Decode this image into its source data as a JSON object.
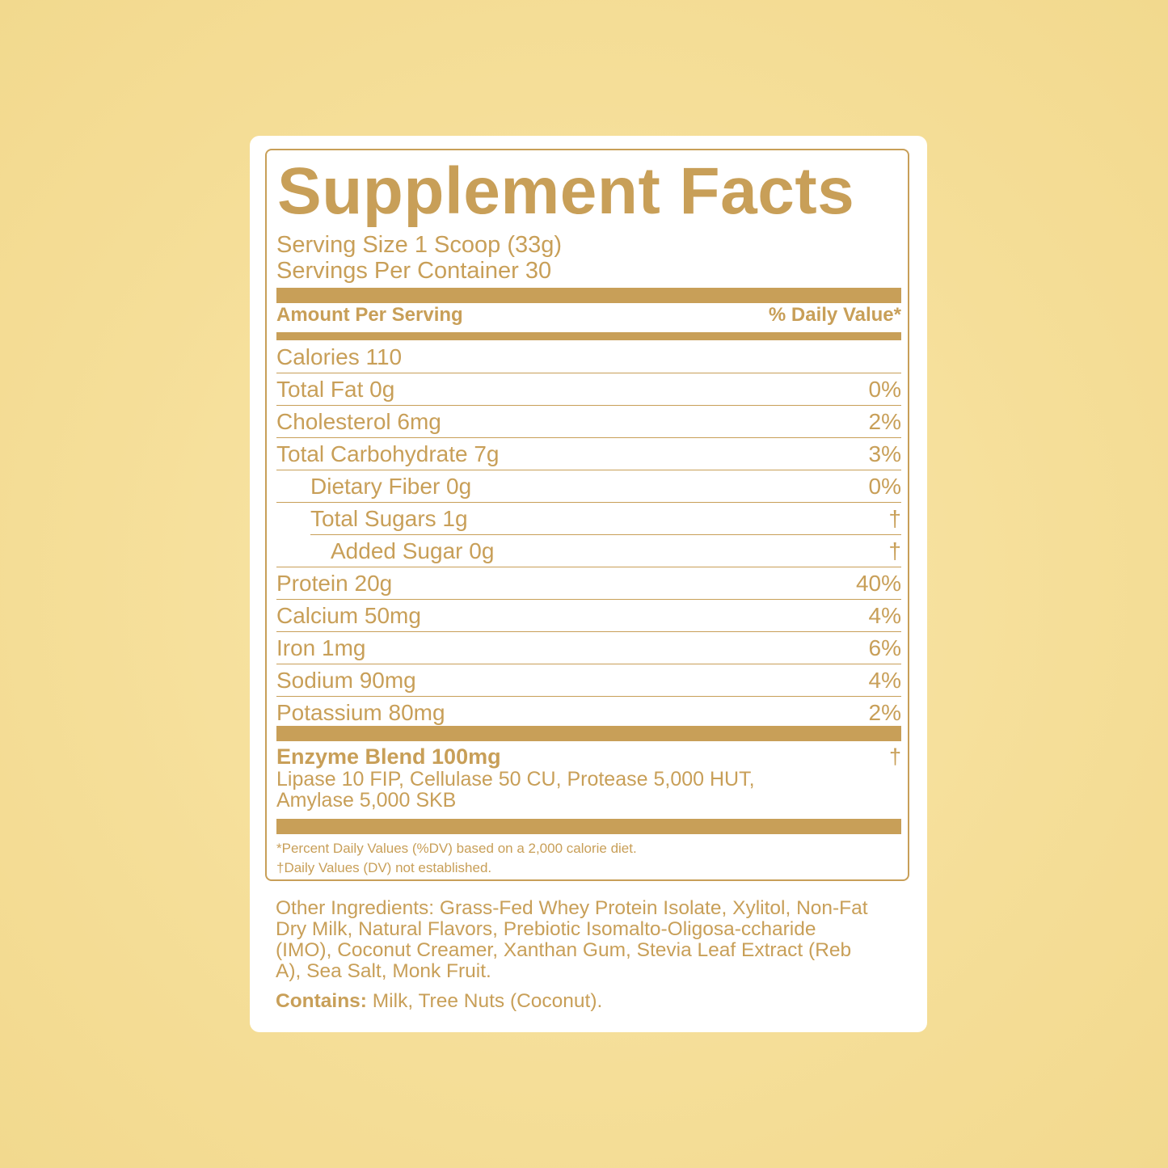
{
  "title": "Supplement Facts",
  "serving_size": "Serving Size 1 Scoop (33g)",
  "servings_per_container": "Servings Per Container 30",
  "header": {
    "amount": "Amount Per Serving",
    "dv": "% Daily Value*"
  },
  "rows": [
    {
      "name": "Calories 110",
      "dv": ""
    },
    {
      "name": "Total Fat 0g",
      "dv": "0%"
    },
    {
      "name": "Cholesterol 6mg",
      "dv": "2%"
    },
    {
      "name": "Total Carbohydrate 7g",
      "dv": "3%"
    },
    {
      "name": "Dietary Fiber 0g",
      "dv": "0%"
    },
    {
      "name": "Total Sugars 1g",
      "dv": "†"
    },
    {
      "name": "Added Sugar 0g",
      "dv": "†"
    },
    {
      "name": "Protein 20g",
      "dv": "40%"
    },
    {
      "name": "Calcium 50mg",
      "dv": "4%"
    },
    {
      "name": "Iron 1mg",
      "dv": "6%"
    },
    {
      "name": "Sodium 90mg",
      "dv": "4%"
    },
    {
      "name": "Potassium 80mg",
      "dv": "2%"
    }
  ],
  "blend": {
    "name": "Enzyme Blend 100mg",
    "dv": "†",
    "ingredients": "Lipase 10 FIP, Cellulase 50 CU, Protease 5,000 HUT, Amylase 5,000 SKB"
  },
  "footnotes": [
    "*Percent Daily Values (%DV) based on a 2,000 calorie diet.",
    "†Daily Values (DV) not established."
  ],
  "other_ingredients": "Other Ingredients: Grass-Fed Whey Protein Isolate, Xylitol, Non-Fat Dry Milk, Natural Flavors, Prebiotic Isomalto-Oligosa-ccharide (IMO), Coconut Creamer, Xanthan Gum, Stevia Leaf Extract (Reb A), Sea Salt, Monk Fruit.",
  "contains": {
    "label": "Contains:",
    "text": " Milk, Tree Nuts (Coconut)."
  },
  "colors": {
    "accent": "#c89f58",
    "background": "#f5de98",
    "card": "#ffffff"
  }
}
